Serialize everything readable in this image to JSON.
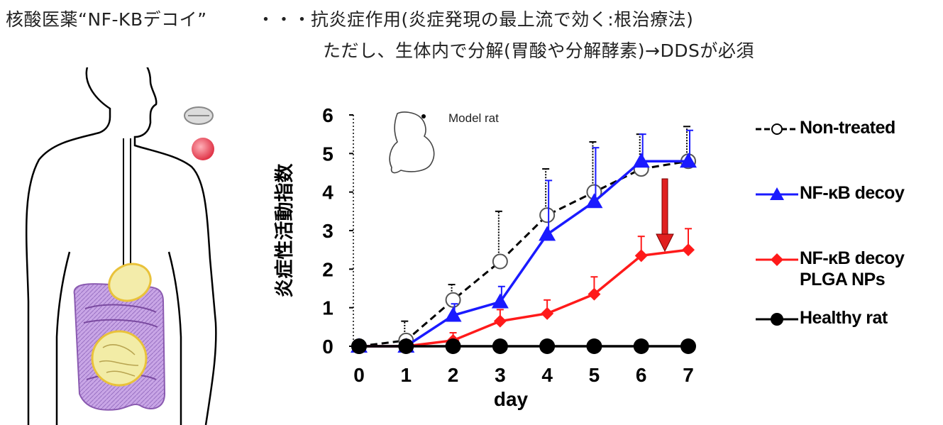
{
  "header": {
    "left": "核酸医薬“NF-KBデコイ”",
    "dots": "・・・",
    "line1": "抗炎症作用(炎症発現の最上流で効く:根治療法)",
    "line2": "ただし、生体内で分解(胃酸や分解酵素)→DDSが必須"
  },
  "inset_label": "Model rat",
  "colors": {
    "non_treated": "#000000",
    "decoy": "#1a1aff",
    "plga": "#ff1a1a",
    "healthy": "#000000",
    "arrow": "#e02020"
  },
  "chart_data": {
    "type": "line",
    "x": [
      0,
      1,
      2,
      3,
      4,
      5,
      6,
      7
    ],
    "xlabel": "day",
    "ylabel": "炎症性活動指数",
    "xlim": [
      0,
      7
    ],
    "ylim": [
      0,
      6
    ],
    "xticks": [
      "0",
      "1",
      "2",
      "3",
      "4",
      "5",
      "6",
      "7"
    ],
    "yticks": [
      "0",
      "1",
      "2",
      "3",
      "4",
      "5",
      "6"
    ],
    "grid": false,
    "legend_position": "right",
    "series": [
      {
        "name": "Non-treated",
        "values": [
          0,
          0.15,
          1.2,
          2.2,
          3.4,
          4.0,
          4.6,
          4.8
        ],
        "errors": [
          0,
          0.5,
          0.4,
          1.3,
          1.2,
          1.3,
          0.9,
          0.9
        ],
        "style": "dashed",
        "marker": "open-circle",
        "color": "#000000"
      },
      {
        "name": "NF-κB decoy",
        "values": [
          0,
          0,
          0.8,
          1.15,
          2.9,
          3.75,
          4.8,
          4.8
        ],
        "errors": [
          0,
          0,
          0.3,
          0.4,
          1.4,
          1.4,
          0.7,
          0.8
        ],
        "style": "solid",
        "marker": "triangle",
        "color": "#1a1aff"
      },
      {
        "name": "NF-κB decoy PLGA NPs",
        "values": [
          0,
          0,
          0.15,
          0.65,
          0.85,
          1.35,
          2.35,
          2.5
        ],
        "errors": [
          0,
          0,
          0.2,
          0.3,
          0.35,
          0.45,
          0.5,
          0.55
        ],
        "style": "solid",
        "marker": "diamond",
        "color": "#ff1a1a"
      },
      {
        "name": "Healthy rat",
        "values": [
          0,
          0,
          0,
          0,
          0,
          0,
          0,
          0
        ],
        "errors": [
          0,
          0,
          0,
          0,
          0,
          0,
          0,
          0
        ],
        "style": "solid",
        "marker": "filled-circle",
        "color": "#000000"
      }
    ]
  },
  "legend": {
    "non_treated": "Non-treated",
    "decoy": "NF-κB decoy",
    "plga_line1": "NF-κB decoy",
    "plga_line2": "PLGA NPs",
    "healthy": "Healthy rat"
  }
}
